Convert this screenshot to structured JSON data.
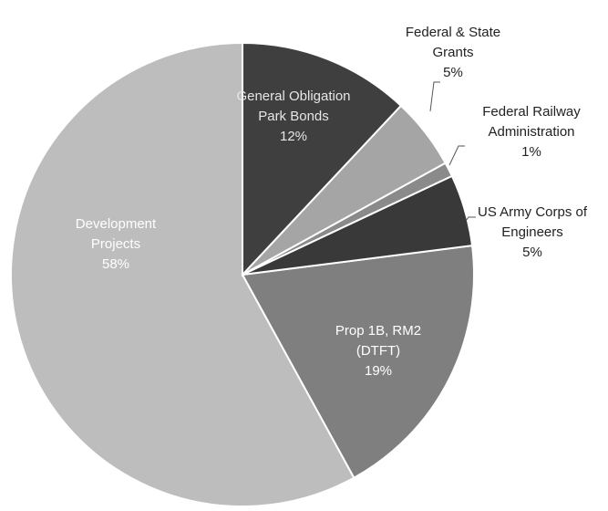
{
  "chart_data": {
    "type": "pie",
    "categories": [
      "General Obligation Park Bonds",
      "Federal & State Grants",
      "Federal Railway Administration",
      "US Army Corps of Engineers",
      "Prop 1B, RM2 (DTFT)",
      "Development Projects"
    ],
    "values": [
      12,
      5,
      1,
      5,
      19,
      58
    ],
    "value_labels": [
      "12%",
      "5%",
      "1%",
      "5%",
      "19%",
      "58%"
    ],
    "colors": [
      "#3f3f3f",
      "#a5a5a5",
      "#8a8a8a",
      "#393939",
      "#7f7f7f",
      "#bdbdbd"
    ]
  }
}
